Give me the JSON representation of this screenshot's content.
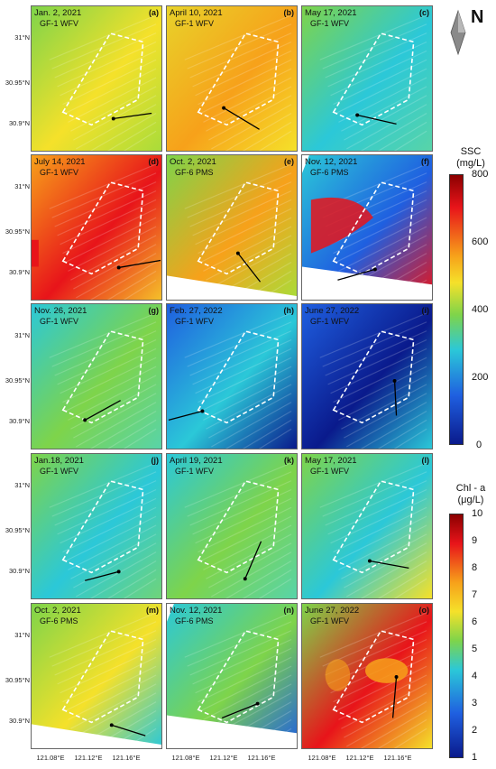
{
  "panels": [
    {
      "date": "Jan. 2, 2021",
      "sensor": "GF-1 WFV",
      "letter": "(a)"
    },
    {
      "date": "April 10, 2021",
      "sensor": "GF-1 WFV",
      "letter": "(b)"
    },
    {
      "date": "May 17, 2021",
      "sensor": "GF-1 WFV",
      "letter": "(c)"
    },
    {
      "date": "July 14, 2021",
      "sensor": "GF-1 WFV",
      "letter": "(d)"
    },
    {
      "date": "Oct. 2, 2021",
      "sensor": "GF-6 PMS",
      "letter": "(e)"
    },
    {
      "date": "Nov. 12, 2021",
      "sensor": "GF-6 PMS",
      "letter": "(f)"
    },
    {
      "date": "Nov. 26, 2021",
      "sensor": "GF-1 WFV",
      "letter": "(g)"
    },
    {
      "date": "Feb. 27, 2022",
      "sensor": "GF-1 WFV",
      "letter": "(h)"
    },
    {
      "date": "June 27, 2022",
      "sensor": "GF-1 WFV",
      "letter": "(i)"
    },
    {
      "date": "Jan.18, 2021",
      "sensor": "GF-1 WFV",
      "letter": "(j)"
    },
    {
      "date": "April 19, 2021",
      "sensor": "GF-1 WFV",
      "letter": "(k)"
    },
    {
      "date": "May 17, 2021",
      "sensor": "GF-1 WFV",
      "letter": "(l)"
    },
    {
      "date": "Oct. 2, 2021",
      "sensor": "GF-6 PMS",
      "letter": "(m)"
    },
    {
      "date": "Nov. 12, 2021",
      "sensor": "GF-6 PMS",
      "letter": "(n)"
    },
    {
      "date": "June 27, 2022",
      "sensor": "GF-1 WFV",
      "letter": "(o)"
    }
  ],
  "lat_labels": [
    "31°N",
    "30.95°N",
    "30.9°N"
  ],
  "lon_labels": [
    "121.08°E",
    "121.12°E",
    "121.16°E"
  ],
  "compass_label": "N",
  "ssc_colorbar": {
    "title_line1": "SSC",
    "title_line2": "(mg/L)",
    "ticks": [
      "800",
      "600",
      "400",
      "200",
      "0"
    ]
  },
  "chl_colorbar": {
    "title_line1": "Chl - a",
    "title_line2": "(μg/L)",
    "ticks": [
      "10",
      "9",
      "8",
      "7",
      "6",
      "5",
      "4",
      "3",
      "2",
      "1"
    ]
  },
  "colors": {
    "dark_red": "#8b0000",
    "red": "#e8141a",
    "orange": "#f7a11a",
    "yellow": "#f5e12a",
    "green": "#7ed44a",
    "cyan": "#2bc8d8",
    "blue": "#1f5fe0",
    "navy": "#0a1a8c"
  }
}
